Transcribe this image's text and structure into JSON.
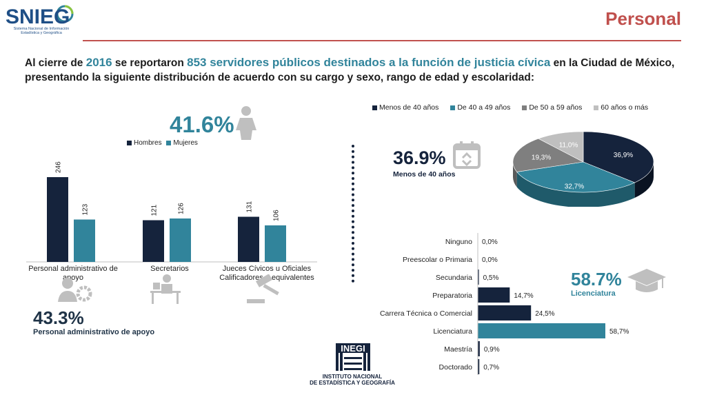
{
  "header": {
    "logo_text": "SNIEG",
    "logo_subtitle": "Sistema Nacional de Información Estadística y Geográfica",
    "page_title": "Personal"
  },
  "intro": {
    "part1": "Al cierre de ",
    "year": "2016",
    "part2": " se reportaron ",
    "highlight": "853 servidores públicos destinados a la función de justicia cívica",
    "part3": " en la Ciudad de México, presentando la siguiente distribución de acuerdo con su cargo y sexo, rango de edad y escolaridad:"
  },
  "callouts": {
    "women_pct": "41.6%",
    "admin_pct": "43.3%",
    "admin_label": "Personal administrativo de apoyo",
    "age_pct": "36.9%",
    "age_label": "Menos de 40 años",
    "lic_pct": "58.7%",
    "lic_label": "Licenciatura"
  },
  "colors": {
    "hombres": "#15233c",
    "mujeres": "#31849b",
    "age_40_49": "#31849b",
    "age_50_59": "#7f7f7f",
    "age_60": "#bfbfbf",
    "accent_red": "#c0504d"
  },
  "icons": [
    "woman-icon",
    "admin-worker-icon",
    "desk-worker-icon",
    "gavel-icon",
    "calendar-icon",
    "graduation-cap-icon"
  ],
  "chart_data": [
    {
      "type": "bar",
      "categories": [
        "Personal administrativo de apoyo",
        "Secretarios",
        "Jueces Cívicos u Oficiales Calificadores o equivalentes"
      ],
      "series": [
        {
          "name": "Hombres",
          "values": [
            246,
            121,
            131
          ]
        },
        {
          "name": "Mujeres",
          "values": [
            123,
            126,
            106
          ]
        }
      ],
      "ylim": [
        0,
        280
      ],
      "legend": "top-left",
      "grid": false
    },
    {
      "type": "pie",
      "labels": [
        "Menos de 40 años",
        "De 40 a 49 años",
        "De 50 a 59 años",
        "60 años o más"
      ],
      "values": [
        36.9,
        32.7,
        19.3,
        11.0
      ],
      "value_labels": [
        "36,9%",
        "32,7%",
        "19,3%",
        "11,0%"
      ],
      "legend": "top"
    },
    {
      "type": "bar",
      "orientation": "horizontal",
      "categories": [
        "Ninguno",
        "Preescolar o Primaria",
        "Secundaria",
        "Preparatoria",
        "Carrera Técnica o Comercial",
        "Licenciatura",
        "Maestría",
        "Doctorado"
      ],
      "values": [
        0.0,
        0.0,
        0.5,
        14.7,
        24.5,
        58.7,
        0.9,
        0.7
      ],
      "value_labels": [
        "0,0%",
        "0,0%",
        "0,5%",
        "14,7%",
        "24,5%",
        "58,7%",
        "0,9%",
        "0,7%"
      ],
      "highlight_index": 5
    }
  ],
  "inegi": {
    "logo_text": "INEGI",
    "name_line1": "INSTITUTO NACIONAL",
    "name_line2": "DE ESTADÍSTICA Y GEOGRAFÍA"
  }
}
